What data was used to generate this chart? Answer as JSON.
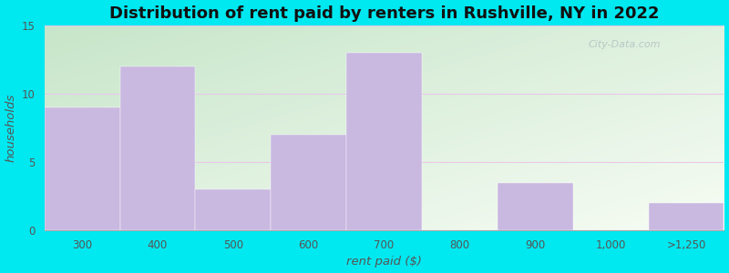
{
  "categories": [
    "300",
    "400",
    "500",
    "600",
    "700",
    "800",
    "900",
    "1,000",
    ">1,250"
  ],
  "values": [
    9,
    12,
    3,
    7,
    13,
    0,
    3.5,
    0,
    2
  ],
  "bar_color": "#c9b8e0",
  "title": "Distribution of rent paid by renters in Rushville, NY in 2022",
  "xlabel": "rent paid ($)",
  "ylabel": "households",
  "ylim": [
    0,
    15
  ],
  "yticks": [
    0,
    5,
    10,
    15
  ],
  "title_fontsize": 13,
  "label_fontsize": 9.5,
  "tick_fontsize": 8.5,
  "outer_bg": "#00e8f0",
  "watermark": "City-Data.com",
  "grid_color": "#e0d0f0",
  "bg_colors": [
    "#d4eeda",
    "#f2f9ee",
    "#f8fcf0",
    "#fafdf8"
  ]
}
